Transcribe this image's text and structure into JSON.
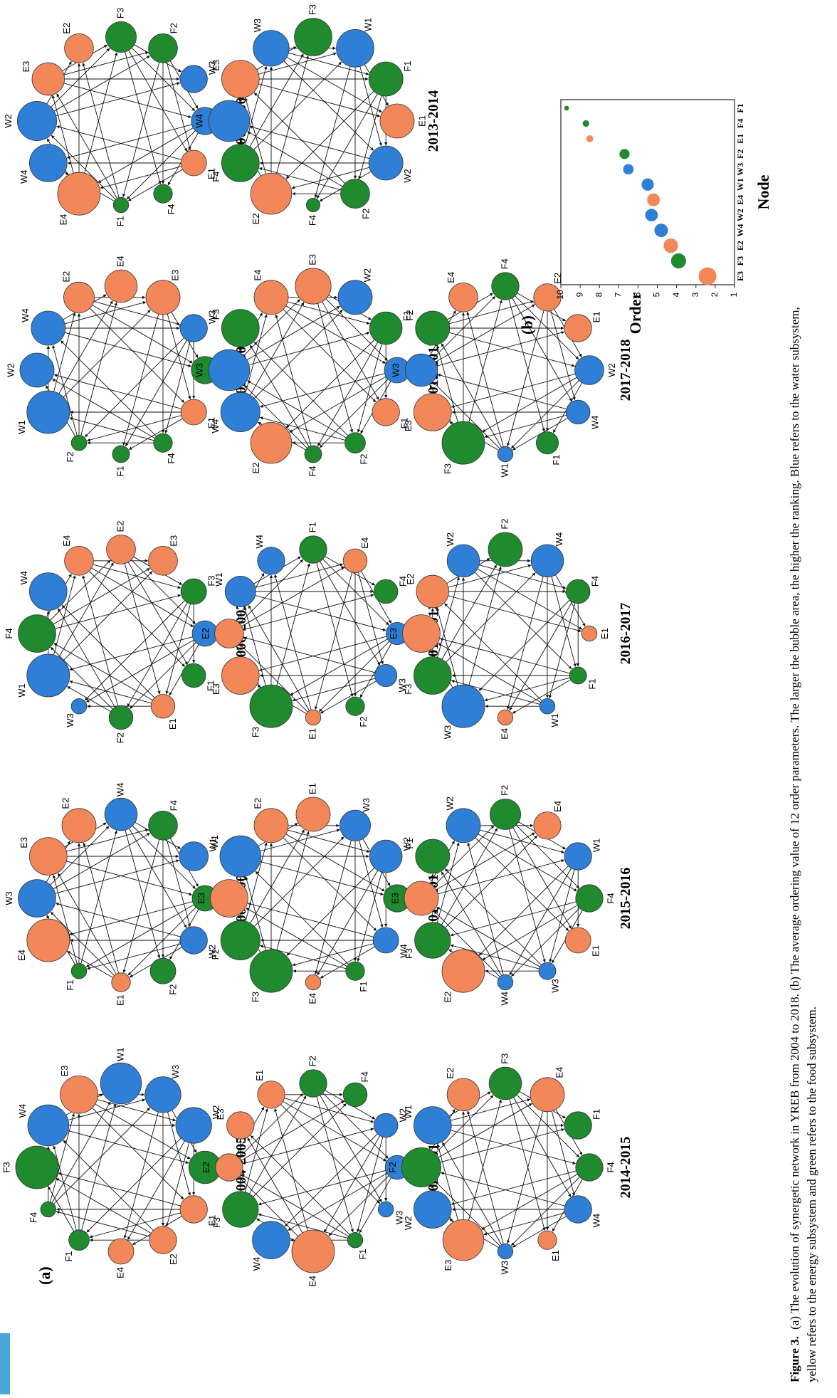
{
  "figure": {
    "panel_a": "(a)",
    "panel_b": "(b)",
    "caption_label": "Figure 3.",
    "caption_line1": "(a) The evolution of synergetic network in YREB from 2004 to 2018. (b) The average ordering value of 12 order parameters. The larger the bubble area, the higher the ranking. Blue refers to the water subsystem,",
    "caption_line2": "yellow refers to the energy subsystem and green refers to the food subsystem."
  },
  "colors": {
    "water": "#2f7fd6",
    "energy": "#f2875a",
    "food": "#1f8a2e"
  },
  "networks": [
    {
      "year": "2004-2005",
      "nodes": [
        [
          "F2",
          0.7
        ],
        [
          "E1",
          0.55
        ],
        [
          "E2",
          0.55
        ],
        [
          "E4",
          0.5
        ],
        [
          "F1",
          0.35
        ],
        [
          "F4",
          0.2
        ],
        [
          "F3",
          1.0
        ],
        [
          "W4",
          0.95
        ],
        [
          "E3",
          0.85
        ],
        [
          "W1",
          0.95
        ],
        [
          "W3",
          0.8
        ],
        [
          "W2",
          0.8
        ]
      ]
    },
    {
      "year": "2005-2006",
      "nodes": [
        [
          "F3",
          0.5
        ],
        [
          "W2",
          0.55
        ],
        [
          "F2",
          0.5
        ],
        [
          "E1",
          0.3
        ],
        [
          "F1",
          0.2
        ],
        [
          "E4",
          1.0
        ],
        [
          "W3",
          0.85
        ],
        [
          "E3",
          0.85
        ],
        [
          "E2",
          0.75
        ],
        [
          "W4",
          0.7
        ],
        [
          "F4",
          0.6
        ],
        [
          "W1",
          0.6
        ]
      ]
    },
    {
      "year": "2006-2007",
      "nodes": [
        [
          "W2",
          0.5
        ],
        [
          "F1",
          0.45
        ],
        [
          "E1",
          0.45
        ],
        [
          "F2",
          0.45
        ],
        [
          "W3",
          0.2
        ],
        [
          "W1",
          1.0
        ],
        [
          "F4",
          0.85
        ],
        [
          "W4",
          0.85
        ],
        [
          "E4",
          0.6
        ],
        [
          "E2",
          0.6
        ],
        [
          "E3",
          0.6
        ],
        [
          "F3",
          0.5
        ]
      ]
    },
    {
      "year": "2007-2008",
      "nodes": [
        [
          "F3",
          0.55
        ],
        [
          "E1",
          0.5
        ],
        [
          "F4",
          0.3
        ],
        [
          "F1",
          0.25
        ],
        [
          "F2",
          0.2
        ],
        [
          "W1",
          1.0
        ],
        [
          "W2",
          0.75
        ],
        [
          "W4",
          0.75
        ],
        [
          "E2",
          0.65
        ],
        [
          "E4",
          0.7
        ],
        [
          "E3",
          0.75
        ],
        [
          "W3",
          0.55
        ]
      ]
    },
    {
      "year": "2008-2009",
      "nodes": [
        [
          "W1",
          0.55
        ],
        [
          "E1",
          0.5
        ],
        [
          "F4",
          0.3
        ],
        [
          "F1",
          0.2
        ],
        [
          "E4",
          1.0
        ],
        [
          "W4",
          0.85
        ],
        [
          "W2",
          0.9
        ],
        [
          "E3",
          0.7
        ],
        [
          "E2",
          0.6
        ],
        [
          "F3",
          0.65
        ],
        [
          "F2",
          0.6
        ],
        [
          "W3",
          0.55
        ]
      ]
    },
    {
      "year": "2009-2010",
      "nodes": [
        [
          "W1",
          0.45
        ],
        [
          "W3",
          0.2
        ],
        [
          "F1",
          0.2
        ],
        [
          "E4",
          1.0
        ],
        [
          "W4",
          0.85
        ],
        [
          "F3",
          0.8
        ],
        [
          "E2",
          0.55
        ],
        [
          "E3",
          0.55
        ],
        [
          "E1",
          0.55
        ],
        [
          "F2",
          0.55
        ],
        [
          "F4",
          0.45
        ],
        [
          "W2",
          0.45
        ]
      ]
    },
    {
      "year": "2010-2011",
      "nodes": [
        [
          "F4",
          0.55
        ],
        [
          "W4",
          0.5
        ],
        [
          "F1",
          0.3
        ],
        [
          "E4",
          0.2
        ],
        [
          "F3",
          1.0
        ],
        [
          "F2",
          0.9
        ],
        [
          "E3",
          0.85
        ],
        [
          "W1",
          0.95
        ],
        [
          "E2",
          0.75
        ],
        [
          "E1",
          0.75
        ],
        [
          "W3",
          0.65
        ],
        [
          "W2",
          0.7
        ]
      ]
    },
    {
      "year": "2011-2012",
      "nodes": [
        [
          "W2",
          0.4
        ],
        [
          "W3",
          0.4
        ],
        [
          "F2",
          0.3
        ],
        [
          "E1",
          0.2
        ],
        [
          "F3",
          1.0
        ],
        [
          "E3",
          0.85
        ],
        [
          "E2",
          0.6
        ],
        [
          "W1",
          0.65
        ],
        [
          "W4",
          0.55
        ],
        [
          "F1",
          0.55
        ],
        [
          "E4",
          0.45
        ],
        [
          "F4",
          0.45
        ]
      ]
    },
    {
      "year": "2012-2013",
      "nodes": [
        [
          "W1",
          0.5
        ],
        [
          "E1",
          0.55
        ],
        [
          "F2",
          0.35
        ],
        [
          "F4",
          0.25
        ],
        [
          "E2",
          0.95
        ],
        [
          "W4",
          0.9
        ],
        [
          "W3",
          0.95
        ],
        [
          "F3",
          0.85
        ],
        [
          "E4",
          0.75
        ],
        [
          "E3",
          0.8
        ],
        [
          "W2",
          0.75
        ],
        [
          "F1",
          0.7
        ]
      ]
    },
    {
      "year": "2013-2014",
      "nodes": [
        [
          "E1",
          0.75
        ],
        [
          "W2",
          0.75
        ],
        [
          "F2",
          0.6
        ],
        [
          "F4",
          0.15
        ],
        [
          "E2",
          0.95
        ],
        [
          "F4 ",
          0.85
        ],
        [
          "W4",
          0.95
        ],
        [
          "E3",
          0.85
        ],
        [
          "W3",
          0.8
        ],
        [
          "F3",
          0.85
        ],
        [
          "W1",
          0.85
        ],
        [
          "F1",
          0.75
        ]
      ]
    },
    {
      "year": "2014-2015",
      "nodes": [
        [
          "F4",
          0.55
        ],
        [
          "W4",
          0.55
        ],
        [
          "E1",
          0.3
        ],
        [
          "W3",
          0.2
        ],
        [
          "E3",
          0.95
        ],
        [
          "W2",
          0.85
        ],
        [
          "F2",
          0.9
        ],
        [
          "W1",
          0.85
        ],
        [
          "E2",
          0.7
        ],
        [
          "F3",
          0.7
        ],
        [
          "E4",
          0.75
        ],
        [
          "F1",
          0.55
        ]
      ]
    },
    {
      "year": "2015-2016",
      "nodes": [
        [
          "F4",
          0.55
        ],
        [
          "E1",
          0.5
        ],
        [
          "W3",
          0.25
        ],
        [
          "W4",
          0.2
        ],
        [
          "E2",
          1.0
        ],
        [
          "F3",
          0.8
        ],
        [
          "E3",
          0.75
        ],
        [
          "F1",
          0.75
        ],
        [
          "W2",
          0.75
        ],
        [
          "F2",
          0.65
        ],
        [
          "E4",
          0.55
        ],
        [
          "W1",
          0.55
        ]
      ]
    },
    {
      "year": "2016-2017",
      "nodes": [
        [
          "E1",
          0.2
        ],
        [
          "F1",
          0.25
        ],
        [
          "W1",
          0.2
        ],
        [
          "E4",
          0.2
        ],
        [
          "W3",
          1.0
        ],
        [
          "F3",
          0.85
        ],
        [
          "E3",
          0.85
        ],
        [
          "E2",
          0.7
        ],
        [
          "W2",
          0.7
        ],
        [
          "F2",
          0.75
        ],
        [
          "W4",
          0.7
        ],
        [
          "F4",
          0.45
        ]
      ]
    },
    {
      "year": "2017-2018",
      "nodes": [
        [
          "W2",
          0.6
        ],
        [
          "W4",
          0.45
        ],
        [
          "F1",
          0.4
        ],
        [
          "W1",
          0.2
        ],
        [
          "F3",
          1.0
        ],
        [
          "E3",
          0.85
        ],
        [
          "W3",
          0.7
        ],
        [
          "F2",
          0.75
        ],
        [
          "E4",
          0.6
        ],
        [
          "F4",
          0.55
        ],
        [
          "E2",
          0.55
        ],
        [
          "E1",
          0.55
        ]
      ]
    }
  ],
  "chart_data": {
    "type": "scatter",
    "xlabel": "Node",
    "ylabel": "Order",
    "categories": [
      "E3",
      "F3",
      "E2",
      "W4",
      "W2",
      "E4",
      "W1",
      "W3",
      "F2",
      "E1",
      "F4",
      "F1"
    ],
    "values": [
      2.4,
      3.9,
      4.3,
      4.8,
      5.3,
      5.2,
      5.5,
      6.5,
      6.7,
      8.5,
      8.7,
      9.7
    ],
    "ylim": [
      1,
      10
    ],
    "yticks": [
      1,
      2,
      3,
      4,
      5,
      6,
      7,
      8,
      9,
      10
    ],
    "subsystems": [
      "energy",
      "food",
      "energy",
      "water",
      "water",
      "energy",
      "water",
      "water",
      "food",
      "energy",
      "food",
      "food"
    ]
  }
}
